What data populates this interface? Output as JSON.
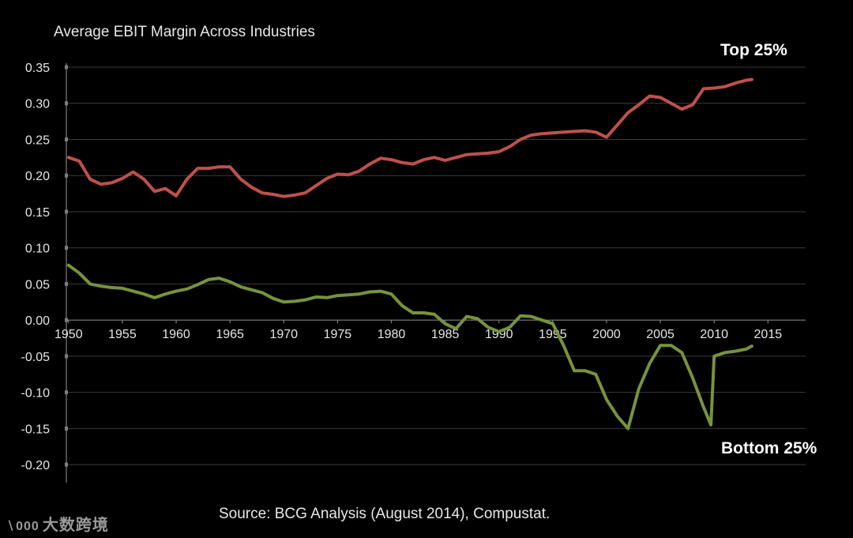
{
  "chart_data": {
    "type": "line",
    "title": "Average EBIT Margin Across Industries",
    "xlabel": "",
    "ylabel": "",
    "xlim": [
      1949.5,
      2018.5
    ],
    "ylim": [
      -0.225,
      0.35
    ],
    "xticks": [
      1950,
      1955,
      1960,
      1965,
      1970,
      1975,
      1980,
      1985,
      1990,
      1995,
      2000,
      2005,
      2010,
      2015
    ],
    "yticks": [
      0.35,
      0.3,
      0.25,
      0.2,
      0.15,
      0.1,
      0.05,
      0.0,
      -0.05,
      -0.1,
      -0.15,
      -0.2
    ],
    "ytick_labels": [
      "0.35",
      "0.30",
      "0.25",
      "0.20",
      "0.15",
      "0.10",
      "0.05",
      "0.00",
      "-0.05",
      "-0.10",
      "-0.15",
      "-0.20"
    ],
    "grid": true,
    "series": [
      {
        "name": "Top 25%",
        "color": "#c0504d",
        "x": [
          1950,
          1951,
          1952,
          1953,
          1954,
          1955,
          1956,
          1957,
          1958,
          1959,
          1960,
          1961,
          1962,
          1963,
          1964,
          1965,
          1966,
          1967,
          1968,
          1969,
          1970,
          1971,
          1972,
          1973,
          1974,
          1975,
          1976,
          1977,
          1978,
          1979,
          1980,
          1981,
          1982,
          1983,
          1984,
          1985,
          1986,
          1987,
          1988,
          1989,
          1990,
          1991,
          1992,
          1993,
          1994,
          1995,
          1996,
          1997,
          1998,
          1999,
          2000,
          2001,
          2002,
          2003,
          2004,
          2005,
          2006,
          2007,
          2008,
          2009,
          2010,
          2011,
          2012,
          2013,
          2013.5
        ],
        "values": [
          0.225,
          0.22,
          0.195,
          0.188,
          0.19,
          0.196,
          0.205,
          0.195,
          0.178,
          0.182,
          0.172,
          0.195,
          0.21,
          0.21,
          0.212,
          0.212,
          0.195,
          0.184,
          0.176,
          0.174,
          0.171,
          0.173,
          0.176,
          0.186,
          0.196,
          0.202,
          0.201,
          0.206,
          0.216,
          0.224,
          0.222,
          0.218,
          0.216,
          0.222,
          0.225,
          0.221,
          0.225,
          0.229,
          0.23,
          0.231,
          0.233,
          0.24,
          0.25,
          0.256,
          0.258,
          0.259,
          0.26,
          0.261,
          0.262,
          0.26,
          0.253,
          0.27,
          0.287,
          0.298,
          0.31,
          0.308,
          0.3,
          0.292,
          0.298,
          0.32,
          0.321,
          0.323,
          0.328,
          0.332,
          0.333
        ]
      },
      {
        "name": "Bottom 25%",
        "color": "#77933c",
        "x": [
          1950,
          1951,
          1952,
          1953,
          1954,
          1955,
          1956,
          1957,
          1958,
          1959,
          1960,
          1961,
          1962,
          1963,
          1964,
          1965,
          1966,
          1967,
          1968,
          1969,
          1970,
          1971,
          1972,
          1973,
          1974,
          1975,
          1976,
          1977,
          1978,
          1979,
          1980,
          1981,
          1982,
          1983,
          1984,
          1985,
          1986,
          1987,
          1988,
          1989,
          1990,
          1991,
          1992,
          1993,
          1994,
          1995,
          1996,
          1997,
          1998,
          1999,
          2000,
          2001,
          2002,
          2003,
          2004,
          2005,
          2006,
          2007,
          2008,
          2009,
          2009.7,
          2010,
          2011,
          2012,
          2013,
          2013.5
        ],
        "values": [
          0.076,
          0.065,
          0.05,
          0.047,
          0.045,
          0.044,
          0.04,
          0.036,
          0.031,
          0.036,
          0.04,
          0.043,
          0.049,
          0.056,
          0.058,
          0.053,
          0.046,
          0.042,
          0.038,
          0.03,
          0.025,
          0.026,
          0.028,
          0.032,
          0.031,
          0.034,
          0.035,
          0.036,
          0.039,
          0.04,
          0.036,
          0.02,
          0.01,
          0.01,
          0.008,
          -0.005,
          -0.012,
          0.005,
          0.002,
          -0.01,
          -0.016,
          -0.01,
          0.006,
          0.005,
          0.0,
          -0.005,
          -0.035,
          -0.07,
          -0.07,
          -0.075,
          -0.11,
          -0.133,
          -0.15,
          -0.095,
          -0.06,
          -0.035,
          -0.035,
          -0.045,
          -0.08,
          -0.12,
          -0.145,
          -0.05,
          -0.045,
          -0.043,
          -0.04,
          -0.036
        ]
      }
    ],
    "annotations": {
      "top_label": "Top 25%",
      "bottom_label": "Bottom 25%"
    },
    "colors": {
      "background": "#000000",
      "grid": "#3a3a3a",
      "axis": "#7f7f7f",
      "text": "#e6e6e6"
    }
  },
  "footer": {
    "source": "Source: BCG Analysis (August 2014), Compustat."
  },
  "watermark": {
    "logo_text": "∖000",
    "text": "大数跨境"
  }
}
